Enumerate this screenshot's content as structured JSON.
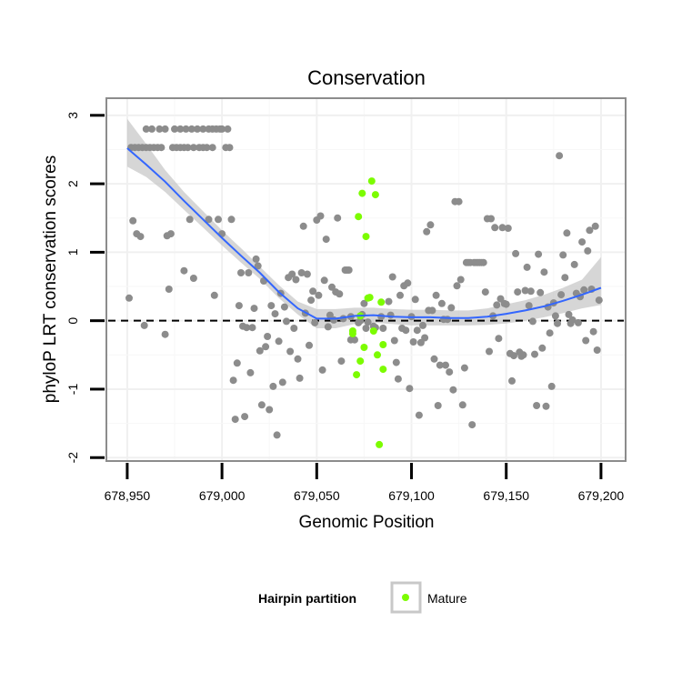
{
  "chart_data": {
    "type": "scatter",
    "title": "Conservation",
    "xlabel": "Genomic Position",
    "ylabel": "phyloP LRT conservation scores",
    "xlim": [
      678939,
      679213
    ],
    "ylim": [
      -2.05,
      3.25
    ],
    "x_ticks": [
      678950,
      679000,
      679050,
      679100,
      679150,
      679200
    ],
    "x_tick_labels": [
      "678,950",
      "679,000",
      "679,050",
      "679,100",
      "679,150",
      "679,200"
    ],
    "y_ticks": [
      -2,
      -1,
      0,
      1,
      2,
      3
    ],
    "y_tick_labels": [
      "-2",
      "-1",
      "0",
      "1",
      "2",
      "3"
    ],
    "reference_line": {
      "y": 0,
      "style": "dashed"
    },
    "legend": {
      "title": "Hairpin partition",
      "entries": [
        {
          "label": "Mature",
          "color": "#7cfc00"
        }
      ],
      "position": "bottom"
    },
    "colors": {
      "other": "#8c8c8c",
      "mature": "#7cfc00",
      "smooth": "#3366ff",
      "ribbon": "#c8c8c8"
    },
    "smooth": {
      "x": [
        678950,
        678960,
        678970,
        678980,
        678990,
        679000,
        679010,
        679020,
        679030,
        679040,
        679050,
        679060,
        679070,
        679080,
        679090,
        679100,
        679110,
        679120,
        679130,
        679140,
        679150,
        679160,
        679170,
        679180,
        679190,
        679200
      ],
      "y": [
        2.52,
        2.28,
        2.03,
        1.75,
        1.48,
        1.21,
        0.95,
        0.7,
        0.42,
        0.18,
        0.03,
        0.03,
        0.07,
        0.08,
        0.06,
        0.05,
        0.05,
        0.04,
        0.04,
        0.06,
        0.1,
        0.15,
        0.21,
        0.29,
        0.38,
        0.48
      ],
      "lower": [
        2.25,
        2.1,
        1.88,
        1.62,
        1.36,
        1.1,
        0.85,
        0.61,
        0.33,
        0.09,
        -0.11,
        -0.11,
        -0.05,
        -0.03,
        -0.05,
        -0.07,
        -0.07,
        -0.07,
        -0.07,
        -0.06,
        -0.04,
        0.0,
        0.05,
        0.11,
        0.18,
        0.23
      ],
      "upper": [
        2.95,
        2.58,
        2.2,
        1.88,
        1.6,
        1.32,
        1.06,
        0.79,
        0.52,
        0.28,
        0.17,
        0.17,
        0.19,
        0.19,
        0.17,
        0.16,
        0.16,
        0.15,
        0.15,
        0.18,
        0.24,
        0.3,
        0.38,
        0.48,
        0.6,
        0.93
      ]
    },
    "series": [
      {
        "name": "Other",
        "points": [
          [
            678951,
            0.33
          ],
          [
            678952,
            2.53
          ],
          [
            678953,
            1.46
          ],
          [
            678954,
            2.53
          ],
          [
            678955,
            1.27
          ],
          [
            678956,
            2.53
          ],
          [
            678957,
            1.23
          ],
          [
            678958,
            2.53
          ],
          [
            678959,
            -0.07
          ],
          [
            678960,
            2.53
          ],
          [
            678960,
            2.8
          ],
          [
            678962,
            2.53
          ],
          [
            678963,
            2.8
          ],
          [
            678964,
            2.53
          ],
          [
            678966,
            2.53
          ],
          [
            678967,
            2.8
          ],
          [
            678968,
            2.53
          ],
          [
            678970,
            -0.2
          ],
          [
            678970,
            2.8
          ],
          [
            678971,
            1.24
          ],
          [
            678972,
            0.46
          ],
          [
            678973,
            1.27
          ],
          [
            678974,
            2.53
          ],
          [
            678975,
            2.8
          ],
          [
            678976,
            2.53
          ],
          [
            678978,
            2.53
          ],
          [
            678978,
            2.8
          ],
          [
            678980,
            2.53
          ],
          [
            678980,
            0.73
          ],
          [
            678981,
            2.8
          ],
          [
            678982,
            2.53
          ],
          [
            678983,
            1.48
          ],
          [
            678984,
            2.8
          ],
          [
            678985,
            2.53
          ],
          [
            678985,
            0.62
          ],
          [
            678987,
            2.8
          ],
          [
            678988,
            2.53
          ],
          [
            678990,
            2.8
          ],
          [
            678990,
            2.53
          ],
          [
            678992,
            2.53
          ],
          [
            678993,
            2.8
          ],
          [
            678993,
            1.48
          ],
          [
            678995,
            2.8
          ],
          [
            678995,
            2.53
          ],
          [
            678996,
            0.37
          ],
          [
            678997,
            2.8
          ],
          [
            678998,
            1.48
          ],
          [
            678999,
            2.8
          ],
          [
            679000,
            1.27
          ],
          [
            679000,
            2.8
          ],
          [
            679002,
            2.53
          ],
          [
            679003,
            2.8
          ],
          [
            679004,
            2.53
          ],
          [
            679005,
            1.48
          ],
          [
            679006,
            -0.87
          ],
          [
            679007,
            -1.44
          ],
          [
            679008,
            -0.62
          ],
          [
            679009,
            0.22
          ],
          [
            679010,
            0.7
          ],
          [
            679011,
            -0.08
          ],
          [
            679012,
            -1.4
          ],
          [
            679013,
            -0.1
          ],
          [
            679014,
            0.7
          ],
          [
            679015,
            -0.76
          ],
          [
            679016,
            -0.1
          ],
          [
            679017,
            0.18
          ],
          [
            679018,
            0.9
          ],
          [
            679019,
            0.8
          ],
          [
            679020,
            -0.44
          ],
          [
            679021,
            -1.23
          ],
          [
            679022,
            0.58
          ],
          [
            679023,
            -0.38
          ],
          [
            679024,
            -0.23
          ],
          [
            679025,
            -1.3
          ],
          [
            679026,
            0.22
          ],
          [
            679027,
            -0.96
          ],
          [
            679028,
            0.1
          ],
          [
            679029,
            -1.67
          ],
          [
            679030,
            -0.3
          ],
          [
            679031,
            0.4
          ],
          [
            679032,
            -0.9
          ],
          [
            679033,
            0.2
          ],
          [
            679034,
            -0.01
          ],
          [
            679035,
            0.63
          ],
          [
            679036,
            -0.45
          ],
          [
            679037,
            0.68
          ],
          [
            679038,
            -0.11
          ],
          [
            679039,
            0.6
          ],
          [
            679040,
            -0.56
          ],
          [
            679041,
            -0.84
          ],
          [
            679042,
            0.7
          ],
          [
            679043,
            1.38
          ],
          [
            679044,
            0.11
          ],
          [
            679045,
            0.68
          ],
          [
            679046,
            -0.36
          ],
          [
            679047,
            0.3
          ],
          [
            679048,
            0.43
          ],
          [
            679049,
            -0.03
          ],
          [
            679050,
            1.47
          ],
          [
            679051,
            0.37
          ],
          [
            679052,
            1.53
          ],
          [
            679053,
            -0.72
          ],
          [
            679054,
            0.59
          ],
          [
            679055,
            1.19
          ],
          [
            679056,
            -0.09
          ],
          [
            679057,
            0.08
          ],
          [
            679058,
            0.49
          ],
          [
            679059,
            0.01
          ],
          [
            679060,
            0.42
          ],
          [
            679061,
            1.5
          ],
          [
            679062,
            0.39
          ],
          [
            679063,
            -0.59
          ],
          [
            679064,
            0.03
          ],
          [
            679065,
            0.74
          ],
          [
            679066,
            0.74
          ],
          [
            679067,
            0.74
          ],
          [
            679068,
            -0.28
          ],
          [
            679068,
            0.06
          ],
          [
            679070,
            -0.28
          ],
          [
            679072,
            -0.03
          ],
          [
            679073,
            0.0
          ],
          [
            679074,
            0.09
          ],
          [
            679075,
            0.25
          ],
          [
            679076,
            -0.11
          ],
          [
            679077,
            -0.02
          ],
          [
            679080,
            -0.08
          ],
          [
            679081,
            -0.1
          ],
          [
            679084,
            0.06
          ],
          [
            679085,
            -0.11
          ],
          [
            679088,
            0.28
          ],
          [
            679089,
            0.08
          ],
          [
            679090,
            0.64
          ],
          [
            679091,
            -0.29
          ],
          [
            679092,
            -0.61
          ],
          [
            679093,
            -0.85
          ],
          [
            679094,
            0.37
          ],
          [
            679095,
            -0.11
          ],
          [
            679096,
            0.51
          ],
          [
            679097,
            -0.14
          ],
          [
            679098,
            0.55
          ],
          [
            679099,
            -0.99
          ],
          [
            679100,
            0.06
          ],
          [
            679101,
            -0.31
          ],
          [
            679102,
            0.31
          ],
          [
            679103,
            -0.14
          ],
          [
            679104,
            -1.38
          ],
          [
            679105,
            -0.32
          ],
          [
            679106,
            -0.07
          ],
          [
            679107,
            -0.25
          ],
          [
            679108,
            1.3
          ],
          [
            679109,
            0.15
          ],
          [
            679110,
            1.4
          ],
          [
            679111,
            0.15
          ],
          [
            679112,
            -0.56
          ],
          [
            679113,
            0.37
          ],
          [
            679114,
            -1.24
          ],
          [
            679115,
            -0.65
          ],
          [
            679116,
            0.25
          ],
          [
            679117,
            0.02
          ],
          [
            679118,
            -0.65
          ],
          [
            679119,
            0.02
          ],
          [
            679120,
            -0.75
          ],
          [
            679121,
            0.19
          ],
          [
            679122,
            -1.01
          ],
          [
            679123,
            1.74
          ],
          [
            679124,
            0.51
          ],
          [
            679125,
            1.74
          ],
          [
            679126,
            0.6
          ],
          [
            679127,
            -1.23
          ],
          [
            679128,
            -0.69
          ],
          [
            679129,
            0.85
          ],
          [
            679130,
            0.85
          ],
          [
            679131,
            0.85
          ],
          [
            679132,
            -1.52
          ],
          [
            679133,
            0.85
          ],
          [
            679134,
            0.85
          ],
          [
            679135,
            0.85
          ],
          [
            679136,
            0.85
          ],
          [
            679137,
            0.85
          ],
          [
            679138,
            0.85
          ],
          [
            679139,
            0.42
          ],
          [
            679140,
            1.49
          ],
          [
            679141,
            -0.45
          ],
          [
            679142,
            1.49
          ],
          [
            679143,
            0.07
          ],
          [
            679144,
            1.36
          ],
          [
            679145,
            0.23
          ],
          [
            679146,
            -0.26
          ],
          [
            679147,
            0.32
          ],
          [
            679148,
            1.36
          ],
          [
            679149,
            0.25
          ],
          [
            679150,
            0.24
          ],
          [
            679151,
            1.35
          ],
          [
            679152,
            -0.48
          ],
          [
            679153,
            -0.88
          ],
          [
            679154,
            -0.51
          ],
          [
            679155,
            0.98
          ],
          [
            679156,
            0.42
          ],
          [
            679157,
            -0.46
          ],
          [
            679158,
            -0.52
          ],
          [
            679159,
            -0.5
          ],
          [
            679160,
            0.44
          ],
          [
            679161,
            0.78
          ],
          [
            679162,
            0.22
          ],
          [
            679163,
            0.43
          ],
          [
            679164,
            -0.01
          ],
          [
            679165,
            -0.49
          ],
          [
            679166,
            -1.24
          ],
          [
            679167,
            0.97
          ],
          [
            679168,
            0.41
          ],
          [
            679169,
            -0.4
          ],
          [
            679170,
            0.71
          ],
          [
            679171,
            -1.25
          ],
          [
            679172,
            0.2
          ],
          [
            679173,
            -0.18
          ],
          [
            679174,
            -0.96
          ],
          [
            679175,
            0.26
          ],
          [
            679176,
            0.07
          ],
          [
            679177,
            -0.04
          ],
          [
            679178,
            2.41
          ],
          [
            679179,
            0.38
          ],
          [
            679180,
            0.96
          ],
          [
            679181,
            0.63
          ],
          [
            679182,
            1.28
          ],
          [
            679183,
            0.09
          ],
          [
            679184,
            -0.04
          ],
          [
            679185,
            0.01
          ],
          [
            679186,
            0.82
          ],
          [
            679187,
            0.4
          ],
          [
            679188,
            -0.03
          ],
          [
            679189,
            0.35
          ],
          [
            679190,
            1.15
          ],
          [
            679191,
            0.45
          ],
          [
            679192,
            -0.29
          ],
          [
            679193,
            1.02
          ],
          [
            679194,
            1.32
          ],
          [
            679195,
            0.46
          ],
          [
            679196,
            -0.16
          ],
          [
            679197,
            1.38
          ],
          [
            679198,
            -0.43
          ],
          [
            679199,
            0.3
          ]
        ]
      },
      {
        "name": "Mature",
        "points": [
          [
            679069,
            -0.15
          ],
          [
            679069,
            -0.19
          ],
          [
            679071,
            -0.79
          ],
          [
            679072,
            1.52
          ],
          [
            679073,
            0.07
          ],
          [
            679073,
            -0.59
          ],
          [
            679074,
            1.86
          ],
          [
            679075,
            -0.39
          ],
          [
            679076,
            1.23
          ],
          [
            679077,
            0.33
          ],
          [
            679078,
            0.34
          ],
          [
            679079,
            2.04
          ],
          [
            679080,
            -0.15
          ],
          [
            679081,
            1.84
          ],
          [
            679082,
            -0.5
          ],
          [
            679083,
            -1.81
          ],
          [
            679084,
            0.27
          ],
          [
            679085,
            -0.71
          ],
          [
            679085,
            -0.35
          ]
        ]
      }
    ]
  }
}
